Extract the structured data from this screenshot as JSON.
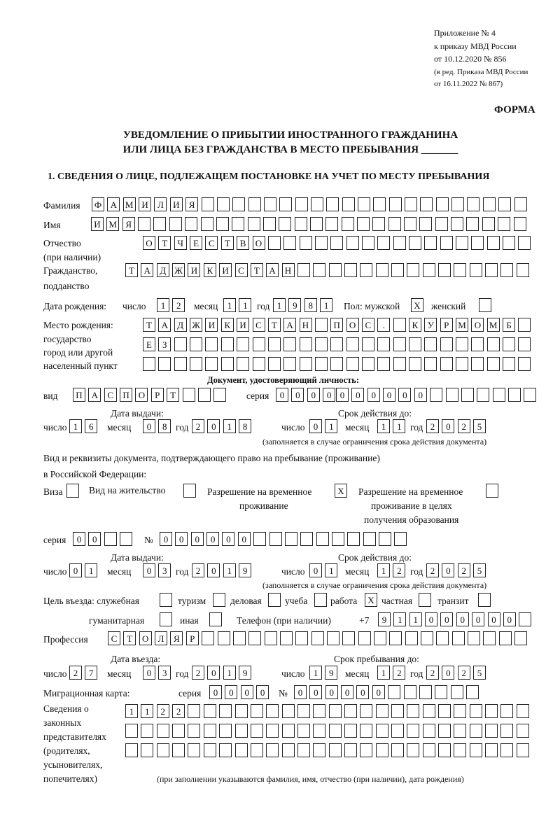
{
  "header": {
    "line1": "Приложение № 4",
    "line2": "к приказу МВД России",
    "line3": "от 10.12.2020 № 856",
    "line4": "(в ред. Приказа МВД России",
    "line5": "от 16.11.2022 № 867)",
    "form": "ФОРМА",
    "title1": "УВЕДОМЛЕНИЕ О ПРИБЫТИИ ИНОСТРАННОГО ГРАЖДАНИНА",
    "title2": "ИЛИ ЛИЦА БЕЗ ГРАЖДАНСТВА В МЕСТО ПРЕБЫВАНИЯ _______"
  },
  "section1": {
    "heading": "1. СВЕДЕНИЯ О ЛИЦЕ, ПОДЛЕЖАЩЕМ ПОСТАНОВКЕ НА УЧЕТ ПО МЕСТУ ПРЕБЫВАНИЯ"
  },
  "labels": {
    "surname": "Фамилия",
    "name": "Имя",
    "patronymic": "Отчество",
    "if_any": "(при наличии)",
    "citizenship": "Гражданство,",
    "subject": "подданство",
    "birth_date": "Дата рождения:",
    "day": "число",
    "month": "месяц",
    "year": "год",
    "sex": "Пол: мужской",
    "female": "женский",
    "birthplace": "Место рождения:",
    "state": "государство",
    "city": "город или другой",
    "settlement": "населенный пункт",
    "id_doc": "Документ, удостоверяющий личность:",
    "kind": "вид",
    "series": "серия",
    "number": "№",
    "issue_date": "Дата выдачи:",
    "valid_until": "Срок действия до:",
    "note_validity": "(заполняется в случае ограничения срока действия документа)",
    "right_doc1": "Вид и реквизиты документа, подтверждающего право на пребывание (проживание)",
    "right_doc2": "в Российской Федерации:",
    "visa": "Виза",
    "residence": "Вид на жительство",
    "trp1": "Разрешение на временное",
    "trp2": "проживание",
    "trpe1": "Разрешение на временное",
    "trpe2": "проживание в целях",
    "trpe3": "получения образования",
    "purpose": "Цель въезда: служебная",
    "tourism": "туризм",
    "business": "деловая",
    "study": "учеба",
    "work": "работа",
    "private": "частная",
    "transit": "транзит",
    "humanitarian": "гуманитарная",
    "other": "иная",
    "phone": "Телефон (при наличии)",
    "phone_prefix": "+7",
    "profession": "Профессия",
    "entry_date": "Дата въезда:",
    "stay_until": "Срок пребывания до:",
    "migration_card": "Миграционная карта:",
    "reps1": "Сведения о",
    "reps2": "законных",
    "reps3": "представителях",
    "reps4": "(родителях,",
    "reps5": "усыновителях,",
    "reps6": "попечителях)",
    "reps_note": "(при заполнении указываются фамилия, имя, отчество (при наличии), дата рождения)"
  },
  "values": {
    "surname": "ФАМИЛИЯ",
    "name": "ИМЯ",
    "patronymic": "ОТЧЕСТВО",
    "citizenship": "ТАДЖИКИСТАН",
    "birth_day": "12",
    "birth_month": "11",
    "birth_year": "1981",
    "sex_male": "X",
    "sex_female": "",
    "birthplace1": "ТАДЖИКИСТАН ПОС. КУРМОМБ",
    "birthplace2": "ЕЗ",
    "birthplace3": "",
    "doc_kind": "ПАСПОРТ",
    "doc_series": "0000",
    "doc_number": "000000",
    "doc_issue_day": "16",
    "doc_issue_month": "08",
    "doc_issue_year": "2018",
    "doc_valid_day": "01",
    "doc_valid_month": "11",
    "doc_valid_year": "2025",
    "visa": "",
    "residence": "",
    "trp": "X",
    "trpe": "",
    "rd_series": "00",
    "rd_number": "000000",
    "rd_issue_day": "01",
    "rd_issue_month": "03",
    "rd_issue_year": "2019",
    "rd_valid_day": "01",
    "rd_valid_month": "12",
    "rd_valid_year": "2025",
    "p_official": "",
    "p_tourism": "",
    "p_business": "",
    "p_study": "",
    "p_work": "X",
    "p_private": "",
    "p_transit": "",
    "p_humanitarian": "",
    "p_other": "",
    "phone": "911000000",
    "profession": "СТОЛЯР",
    "entry_day": "27",
    "entry_month": "03",
    "entry_year": "2019",
    "stay_day": "19",
    "stay_month": "12",
    "stay_year": "2025",
    "mc_series": "0000",
    "mc_number": "000000",
    "reps1": "1122",
    "reps2": "",
    "reps3": ""
  }
}
